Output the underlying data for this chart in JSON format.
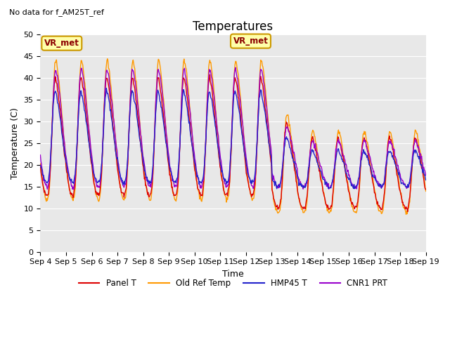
{
  "title": "Temperatures",
  "ylabel": "Temperature (C)",
  "xlabel": "Time",
  "note": "No data for f_AM25T_ref",
  "annotation": "VR_met",
  "ylim": [
    0,
    50
  ],
  "yticks": [
    0,
    5,
    10,
    15,
    20,
    25,
    30,
    35,
    40,
    45,
    50
  ],
  "xtick_labels": [
    "Sep 4",
    "Sep 5",
    "Sep 6",
    "Sep 7",
    "Sep 8",
    "Sep 9",
    "Sep 10",
    "Sep 11",
    "Sep 12",
    "Sep 13",
    "Sep 14",
    "Sep 15",
    "Sep 16",
    "Sep 17",
    "Sep 18",
    "Sep 19"
  ],
  "colors": {
    "Panel T": "#dd0000",
    "Old Ref Temp": "#ff9900",
    "HMP45 T": "#2222cc",
    "CNR1 PRT": "#9900cc"
  },
  "background_color": "#e8e8e8",
  "title_fontsize": 12,
  "label_fontsize": 9,
  "tick_fontsize": 8
}
